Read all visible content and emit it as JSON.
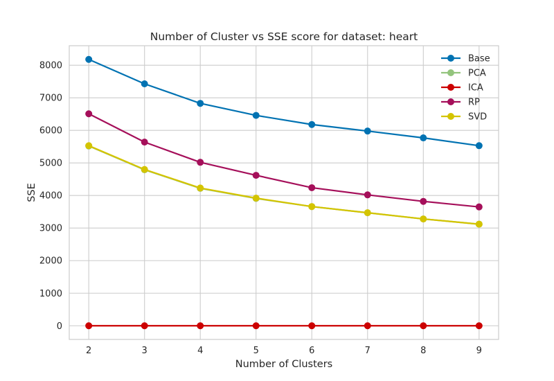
{
  "chart_data": {
    "type": "line",
    "title": "Number of Cluster vs SSE score for dataset: heart",
    "xlabel": "Number of Clusters",
    "ylabel": "SSE",
    "x": [
      2,
      3,
      4,
      5,
      6,
      7,
      8,
      9
    ],
    "xlim": [
      1.65,
      9.35
    ],
    "ylim": [
      -420,
      8600
    ],
    "yticks": [
      0,
      1000,
      2000,
      3000,
      4000,
      5000,
      6000,
      7000,
      8000
    ],
    "grid": true,
    "legend_position": "top-right",
    "series": [
      {
        "name": "Base",
        "color": "#0072b2",
        "values": [
          8180,
          7430,
          6830,
          6460,
          6180,
          5980,
          5770,
          5530
        ]
      },
      {
        "name": "PCA",
        "color": "#93c47d",
        "values": [
          5520,
          4790,
          4220,
          3910,
          3660,
          3470,
          3280,
          3120
        ]
      },
      {
        "name": "ICA",
        "color": "#cc0000",
        "values": [
          0,
          0,
          0,
          0,
          0,
          0,
          0,
          0
        ]
      },
      {
        "name": "RP",
        "color": "#a50f5a",
        "values": [
          6510,
          5640,
          5020,
          4620,
          4240,
          4020,
          3820,
          3650
        ]
      },
      {
        "name": "SVD",
        "color": "#d4c400",
        "values": [
          5530,
          4800,
          4230,
          3920,
          3660,
          3470,
          3280,
          3120
        ]
      }
    ]
  }
}
